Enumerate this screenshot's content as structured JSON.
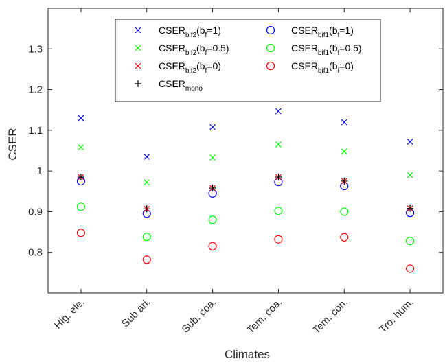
{
  "chart_data": {
    "type": "scatter",
    "xlabel": "Climates",
    "ylabel": "CSER",
    "categories": [
      "Hig. ele.",
      "Sub ari.",
      "Sub. coa.",
      "Tem. coa.",
      "Tem. con.",
      "Tro. hum."
    ],
    "ylim": [
      0.7,
      1.4
    ],
    "yticks": [
      "0.8",
      "0.9",
      "1",
      "1.1",
      "1.2",
      "1.3"
    ],
    "yticks_values": [
      0.8,
      0.9,
      1.0,
      1.1,
      1.2,
      1.3
    ],
    "grid": false,
    "legend_position": "top",
    "series": [
      {
        "name": "CSER_bif2(b_f=1)",
        "legend": {
          "main": "CSER",
          "sub": "bif2",
          "rest": "(b",
          "sub2": "f",
          "rest2": "=1)"
        },
        "marker": "x",
        "color": "#0000ff",
        "values": [
          1.13,
          1.035,
          1.108,
          1.147,
          1.12,
          1.072
        ]
      },
      {
        "name": "CSER_bif2(b_f=0.5)",
        "legend": {
          "main": "CSER",
          "sub": "bif2",
          "rest": "(b",
          "sub2": "f",
          "rest2": "=0.5)"
        },
        "marker": "x",
        "color": "#00ff00",
        "values": [
          1.058,
          0.972,
          1.033,
          1.065,
          1.048,
          0.99
        ]
      },
      {
        "name": "CSER_bif2(b_f=0)",
        "legend": {
          "main": "CSER",
          "sub": "bif2",
          "rest": "(b",
          "sub2": "f",
          "rest2": "=0)"
        },
        "marker": "x",
        "color": "#ff0000",
        "values": [
          0.985,
          0.907,
          0.958,
          0.985,
          0.975,
          0.908
        ]
      },
      {
        "name": "CSER_mono",
        "legend": {
          "main": "CSER",
          "sub": "mono",
          "rest": "",
          "sub2": "",
          "rest2": ""
        },
        "marker": "+",
        "color": "#000000",
        "values": [
          0.985,
          0.907,
          0.958,
          0.985,
          0.975,
          0.908
        ]
      },
      {
        "name": "CSER_bif1(b_f=1)",
        "legend": {
          "main": "CSER",
          "sub": "bif1",
          "rest": "(b",
          "sub2": "f",
          "rest2": "=1)"
        },
        "marker": "o",
        "color": "#0000ff",
        "values": [
          0.975,
          0.895,
          0.945,
          0.973,
          0.963,
          0.897
        ]
      },
      {
        "name": "CSER_bif1(b_f=0.5)",
        "legend": {
          "main": "CSER",
          "sub": "bif1",
          "rest": "(b",
          "sub2": "f",
          "rest2": "=0.5)"
        },
        "marker": "o",
        "color": "#00ff00",
        "values": [
          0.912,
          0.838,
          0.88,
          0.902,
          0.9,
          0.828
        ]
      },
      {
        "name": "CSER_bif1(b_f=0)",
        "legend": {
          "main": "CSER",
          "sub": "bif1",
          "rest": "(b",
          "sub2": "f",
          "rest2": "=0)"
        },
        "marker": "o",
        "color": "#ff0000",
        "values": [
          0.848,
          0.782,
          0.815,
          0.832,
          0.837,
          0.76
        ]
      }
    ]
  }
}
